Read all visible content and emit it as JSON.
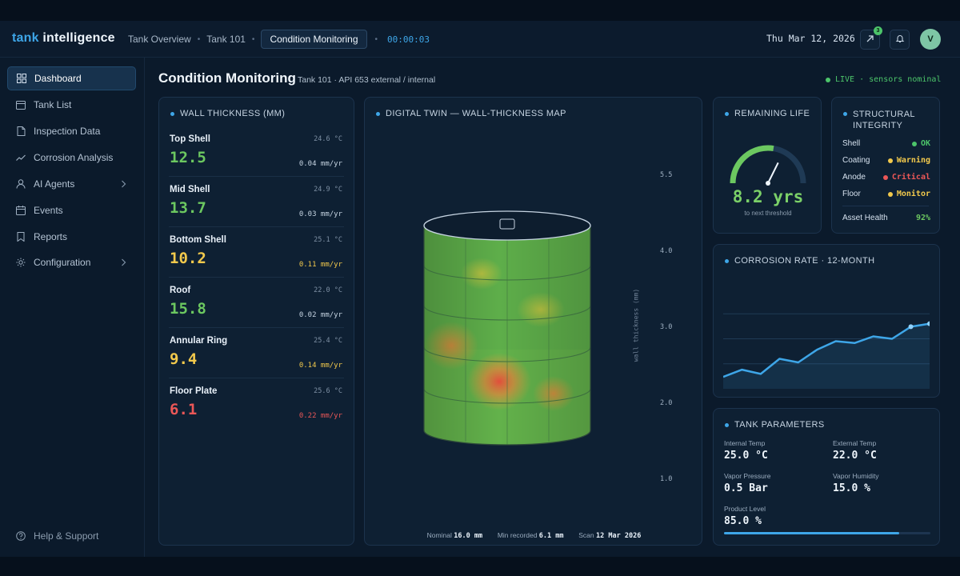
{
  "app": {
    "logo_prefix": "tank",
    "logo_suffix": " intelligence"
  },
  "breadcrumb": {
    "items": [
      "Tank Overview",
      "Tank 101",
      "Condition Monitoring"
    ],
    "timer": "00:00:03"
  },
  "header": {
    "date": "Thu Mar 12, 2026",
    "notification_count": "3",
    "avatar_initial": "V"
  },
  "sidebar": {
    "items": [
      {
        "label": "Dashboard",
        "icon": "grid-icon",
        "active": true
      },
      {
        "label": "Tank List",
        "icon": "calendar-icon"
      },
      {
        "label": "Inspection Data",
        "icon": "document-icon"
      },
      {
        "label": "Corrosion Analysis",
        "icon": "trend-icon"
      },
      {
        "label": "AI Agents",
        "icon": "user-icon",
        "has_children": true
      },
      {
        "label": "Events",
        "icon": "calendar-icon"
      },
      {
        "label": "Reports",
        "icon": "bookmark-icon"
      },
      {
        "label": "Configuration",
        "icon": "gear-icon",
        "has_children": true
      }
    ],
    "help_label": "Help & Support"
  },
  "page": {
    "title": "Condition Monitoring",
    "subtitle": "Tank 101 · API 653 external / internal",
    "live_status": "LIVE · sensors nominal"
  },
  "wall_thickness": {
    "title": "WALL THICKNESS (MM)",
    "rows": [
      {
        "name": "Top Shell",
        "value": "12.5",
        "temp": "24.6 °C",
        "rate": "0.04 mm/yr",
        "status": "good"
      },
      {
        "name": "Mid Shell",
        "value": "13.7",
        "temp": "24.9 °C",
        "rate": "0.03 mm/yr",
        "status": "good"
      },
      {
        "name": "Bottom Shell",
        "value": "10.2",
        "temp": "25.1 °C",
        "rate": "0.11 mm/yr",
        "status": "warning"
      },
      {
        "name": "Roof",
        "value": "15.8",
        "temp": "22.0 °C",
        "rate": "0.02 mm/yr",
        "status": "good"
      },
      {
        "name": "Annular Ring",
        "value": "9.4",
        "temp": "25.4 °C",
        "rate": "0.14 mm/yr",
        "status": "warning"
      },
      {
        "name": "Floor Plate",
        "value": "6.1",
        "temp": "25.6 °C",
        "rate": "0.22 mm/yr",
        "status": "critical"
      }
    ]
  },
  "digital_twin": {
    "title": "DIGITAL TWIN — WALL-THICKNESS MAP",
    "scale_ticks": [
      "5.5",
      "4.0",
      "3.0",
      "2.0",
      "1.0"
    ],
    "scale_label": "wall thickness (mm)",
    "footer": {
      "nominal_label": "Nominal",
      "nominal_value": "16.0 mm",
      "min_label": "Min recorded",
      "min_value": "6.1 mm",
      "scan_label": "Scan",
      "scan_value": "12 Mar 2026"
    }
  },
  "remaining_life": {
    "title": "REMAINING LIFE",
    "value": "8.2 yrs",
    "subtitle": "to next threshold",
    "gauge_fraction": 0.55
  },
  "structural_integrity": {
    "title": "STRUCTURAL INTEGRITY",
    "rows": [
      {
        "label": "Shell",
        "status": "OK",
        "color": "#4cc46a"
      },
      {
        "label": "Coating",
        "status": "Warning",
        "color": "#f2c94c"
      },
      {
        "label": "Anode",
        "status": "Critical",
        "color": "#eb5757"
      },
      {
        "label": "Floor",
        "status": "Monitor",
        "color": "#f2c94c"
      }
    ],
    "asset_health_label": "Asset Health",
    "asset_health_value": "92%"
  },
  "corrosion_rate": {
    "title": "CORROSION RATE · 12-MONTH"
  },
  "chart_data": {
    "type": "area",
    "title": "CORROSION RATE · 12-MONTH",
    "x": [
      1,
      2,
      3,
      4,
      5,
      6,
      7,
      8,
      9,
      10,
      11,
      12
    ],
    "values": [
      0.17,
      0.29,
      0.22,
      0.47,
      0.41,
      0.62,
      0.76,
      0.73,
      0.84,
      0.8,
      1.0,
      1.05
    ],
    "ylim": [
      0,
      1.6
    ],
    "grid": true,
    "color": "#3ea6e8"
  },
  "tank_parameters": {
    "title": "TANK PARAMETERS",
    "internal_temp_label": "Internal Temp",
    "internal_temp": "25.0 °C",
    "external_temp_label": "External Temp",
    "external_temp": "22.0 °C",
    "vapor_pressure_label": "Vapor Pressure",
    "vapor_pressure": "0.5 Bar",
    "vapor_humidity_label": "Vapor Humidity",
    "vapor_humidity": "15.0 %",
    "product_level_label": "Product Level",
    "product_level": "85.0 %",
    "product_level_fraction": 0.85
  },
  "colors": {
    "accent": "#3ea6e8",
    "good": "#6cc860",
    "warning": "#f2c94c",
    "critical": "#eb5757"
  }
}
